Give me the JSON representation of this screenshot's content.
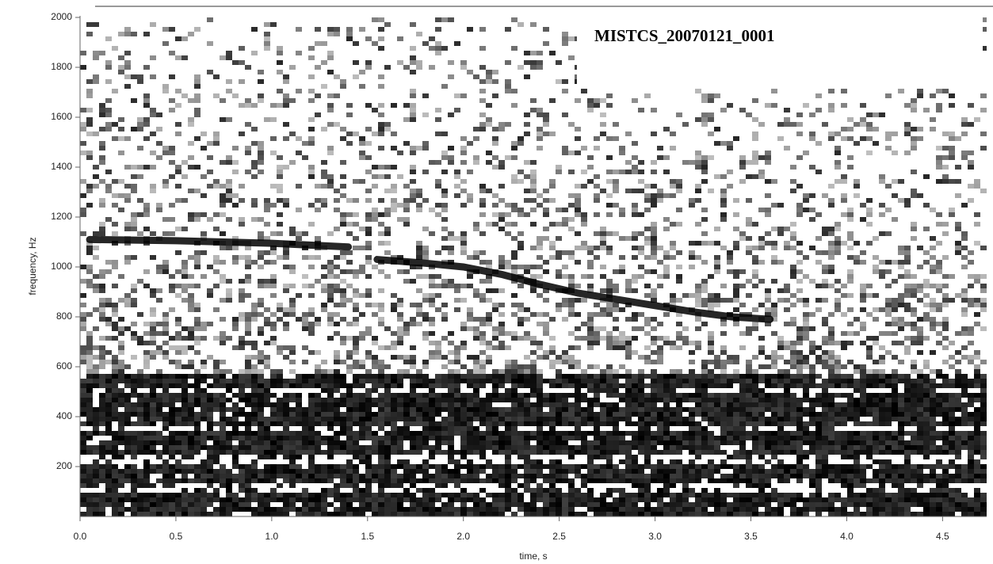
{
  "chart_data": {
    "type": "spectrogram",
    "title": "MISTCS_20070121_0001",
    "xlabel": "time, s",
    "ylabel": "frequency, Hz",
    "xlim": [
      0,
      4.73
    ],
    "ylim": [
      0,
      2000
    ],
    "xticks": [
      {
        "value": 0,
        "label": "0.0"
      },
      0.5,
      {
        "value": 1,
        "label": "1.0"
      },
      1.5,
      {
        "value": 2,
        "label": "2.0"
      },
      2.5,
      {
        "value": 3,
        "label": "3.0"
      },
      3.5,
      {
        "value": 4,
        "label": "4.0"
      },
      4.5
    ],
    "yticks": [
      200,
      400,
      600,
      800,
      1000,
      1200,
      1400,
      1600,
      1800,
      2000
    ],
    "series": [
      {
        "color": "#000000",
        "x": [
          0.05,
          0.5,
          1.0,
          1.4
        ],
        "values": [
          1110,
          1105,
          1095,
          1080
        ]
      },
      {
        "color": "#000000",
        "x": [
          1.55,
          1.8,
          2.0,
          2.2,
          2.4,
          2.6,
          2.8,
          3.0,
          3.2,
          3.4,
          3.6
        ],
        "values": [
          1030,
          1015,
          1000,
          970,
          930,
          895,
          870,
          845,
          820,
          800,
          790
        ]
      }
    ]
  }
}
